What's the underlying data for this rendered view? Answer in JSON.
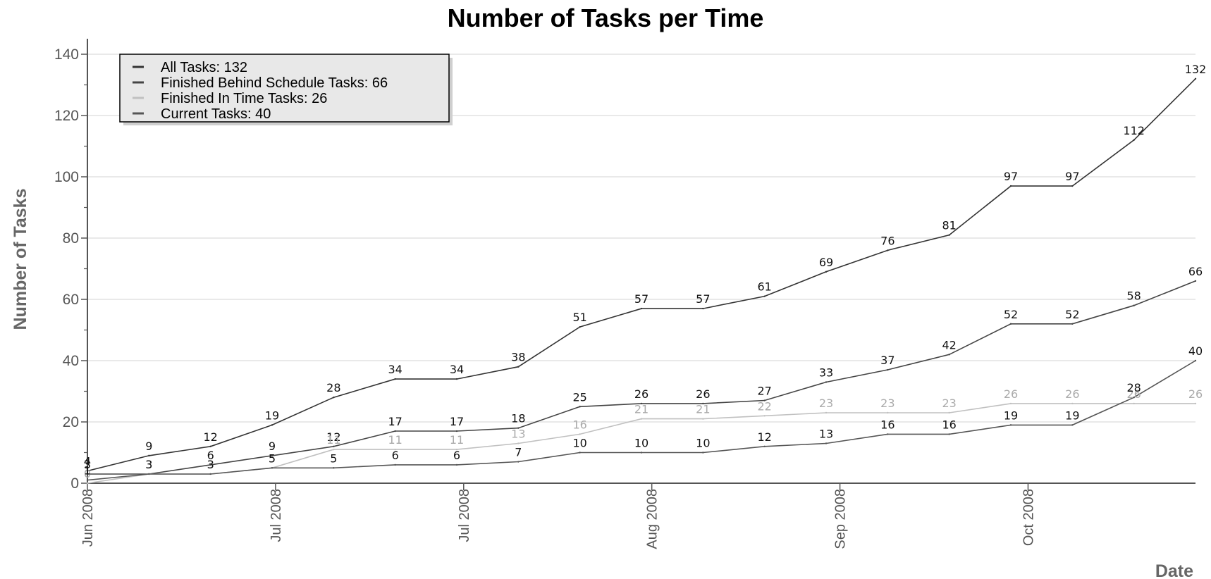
{
  "chart_data": {
    "type": "line",
    "title": "Number of Tasks per Time",
    "xlabel": "Date",
    "ylabel": "Number of Tasks",
    "ylim": [
      0,
      140
    ],
    "y_ticks": [
      "0",
      "20",
      "40",
      "60",
      "80",
      "100",
      "120",
      "140"
    ],
    "x_tick_labels": [
      "Jun 2008",
      "Jul 2008",
      "Jul 2008",
      "Aug 2008",
      "Sep 2008",
      "Oct 2008"
    ],
    "grid": true,
    "legend_position": "top-left",
    "colors": {
      "all": "#333333",
      "behind": "#444444",
      "intime": "#c0c0c0",
      "current": "#555555"
    },
    "series": [
      {
        "name": "All Tasks: 132",
        "key": "all",
        "values": [
          4,
          9,
          12,
          19,
          28,
          34,
          34,
          38,
          51,
          57,
          57,
          61,
          69,
          76,
          81,
          97,
          97,
          112,
          132
        ]
      },
      {
        "name": "Finished Behind Schedule Tasks: 66",
        "key": "behind",
        "values": [
          3,
          3,
          6,
          9,
          12,
          17,
          17,
          18,
          25,
          26,
          26,
          27,
          33,
          37,
          42,
          52,
          52,
          58,
          66
        ]
      },
      {
        "name": "Finished In Time Tasks: 26",
        "key": "intime",
        "values": [
          0,
          3,
          3,
          5,
          11,
          11,
          11,
          13,
          16,
          21,
          21,
          22,
          23,
          23,
          23,
          26,
          26,
          26,
          26
        ]
      },
      {
        "name": "Current Tasks: 40",
        "key": "current",
        "values": [
          1,
          3,
          3,
          5,
          5,
          6,
          6,
          7,
          10,
          10,
          10,
          12,
          13,
          16,
          16,
          19,
          19,
          28,
          40
        ]
      }
    ]
  }
}
